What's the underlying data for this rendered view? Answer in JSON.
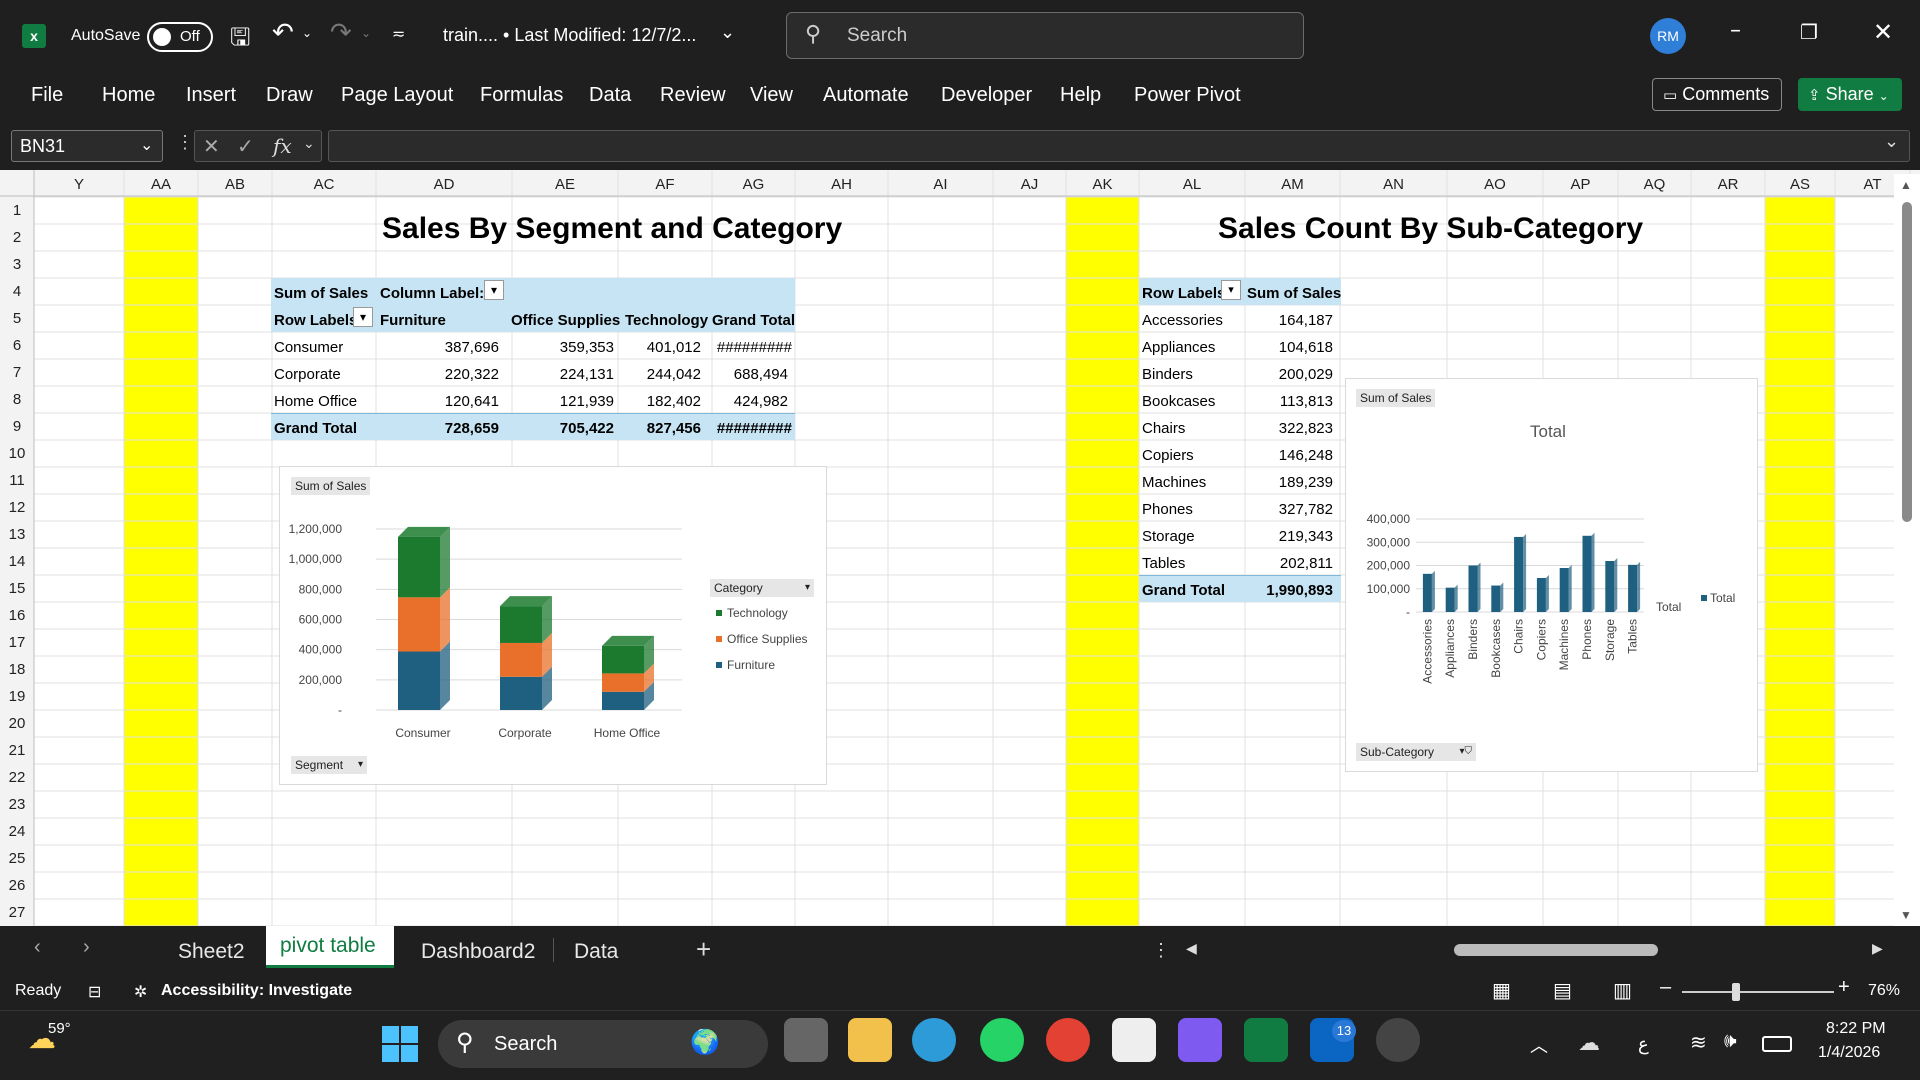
{
  "title_bar": {
    "autosave_label": "AutoSave",
    "autosave_state": "Off",
    "file_name": "train.... • Last Modified: 12/7/2...",
    "search_placeholder": "Search",
    "avatar_initials": "RM"
  },
  "menu": {
    "items": [
      "File",
      "Home",
      "Insert",
      "Draw",
      "Page Layout",
      "Formulas",
      "Data",
      "Review",
      "View",
      "Automate",
      "Developer",
      "Help",
      "Power Pivot"
    ],
    "comments_label": "Comments",
    "share_label": "Share"
  },
  "formula_bar": {
    "name_box": "BN31",
    "fx_label": "fx",
    "formula": ""
  },
  "columns": [
    "Y",
    "AA",
    "AB",
    "AC",
    "AD",
    "AE",
    "AF",
    "AG",
    "AH",
    "AI",
    "AJ",
    "AK",
    "AL",
    "AM",
    "AN",
    "AO",
    "AP",
    "AQ",
    "AR",
    "AS",
    "AT"
  ],
  "rows": [
    "1",
    "2",
    "3",
    "4",
    "5",
    "6",
    "7",
    "8",
    "9",
    "10",
    "11",
    "12",
    "13",
    "14",
    "15",
    "16",
    "17",
    "18",
    "19",
    "20",
    "21",
    "22",
    "23",
    "24",
    "25",
    "26",
    "27"
  ],
  "pivot1": {
    "title": "Sales By Segment and Category",
    "value_label": "Sum of Sales",
    "column_labels": "Column Label:",
    "row_labels": "Row Labels",
    "headers": [
      "Furniture",
      "Office Supplies",
      "Technology",
      "Grand Total"
    ],
    "rows": [
      {
        "label": "Consumer",
        "values": [
          "387,696",
          "359,353",
          "401,012",
          "#########"
        ]
      },
      {
        "label": "Corporate",
        "values": [
          "220,322",
          "224,131",
          "244,042",
          "688,494"
        ]
      },
      {
        "label": "Home Office",
        "values": [
          "120,641",
          "121,939",
          "182,402",
          "424,982"
        ]
      }
    ],
    "total": {
      "label": "Grand Total",
      "values": [
        "728,659",
        "705,422",
        "827,456",
        "#########"
      ]
    }
  },
  "pivot2": {
    "title": "Sales Count By Sub-Category",
    "row_labels": "Row Labels",
    "value_label": "Sum of Sales",
    "rows": [
      {
        "label": "Accessories",
        "value": "164,187"
      },
      {
        "label": "Appliances",
        "value": "104,618"
      },
      {
        "label": "Binders",
        "value": "200,029"
      },
      {
        "label": "Bookcases",
        "value": "113,813"
      },
      {
        "label": "Chairs",
        "value": "322,823"
      },
      {
        "label": "Copiers",
        "value": "146,248"
      },
      {
        "label": "Machines",
        "value": "189,239"
      },
      {
        "label": "Phones",
        "value": "327,782"
      },
      {
        "label": "Storage",
        "value": "219,343"
      },
      {
        "label": "Tables",
        "value": "202,811"
      }
    ],
    "total": {
      "label": "Grand Total",
      "value": "1,990,893"
    }
  },
  "chart_data": [
    {
      "type": "bar",
      "stacked": true,
      "field_value": "Sum of Sales",
      "field_axis": "Segment",
      "legend_title": "Category",
      "legend_position": "right",
      "categories": [
        "Consumer",
        "Corporate",
        "Home Office"
      ],
      "series": [
        {
          "name": "Furniture",
          "color": "#1f5f7f",
          "values": [
            387696,
            220322,
            120641
          ]
        },
        {
          "name": "Office Supplies",
          "color": "#e8702a",
          "values": [
            359353,
            224131,
            121939
          ]
        },
        {
          "name": "Technology",
          "color": "#1c7a2f",
          "values": [
            401012,
            244042,
            182402
          ]
        }
      ],
      "yticks": [
        "-",
        "200,000",
        "400,000",
        "600,000",
        "800,000",
        "1,000,000",
        "1,200,000"
      ],
      "ylim": [
        0,
        1200000
      ]
    },
    {
      "type": "bar",
      "title": "Total",
      "field_value": "Sum of Sales",
      "field_axis": "Sub-Category",
      "axis_total_label": "Total",
      "legend_position": "right",
      "categories": [
        "Accessories",
        "Appliances",
        "Binders",
        "Bookcases",
        "Chairs",
        "Copiers",
        "Machines",
        "Phones",
        "Storage",
        "Tables"
      ],
      "series": [
        {
          "name": "Total",
          "color": "#1f5f7f",
          "values": [
            164187,
            104618,
            200029,
            113813,
            322823,
            146248,
            189239,
            327782,
            219343,
            202811
          ]
        }
      ],
      "yticks": [
        "-",
        "100,000",
        "200,000",
        "300,000",
        "400,000"
      ],
      "ylim": [
        0,
        400000
      ]
    }
  ],
  "sheet_tabs": [
    "Sheet2",
    "pivot table",
    "Dashboard2",
    "Data"
  ],
  "active_tab": "pivot table",
  "status_bar": {
    "ready": "Ready",
    "accessibility": "Accessibility: Investigate",
    "zoom": "76%"
  },
  "taskbar": {
    "weather_temp": "59°",
    "search_label": "Search",
    "linkedin_badge": "13",
    "lang": "ع",
    "time": "8:22 PM",
    "date": "1/4/2026"
  },
  "colors": {
    "accent_green": "#107c41",
    "highlight_yellow": "#ffff00",
    "pivot_header": "#c6e4f3"
  }
}
